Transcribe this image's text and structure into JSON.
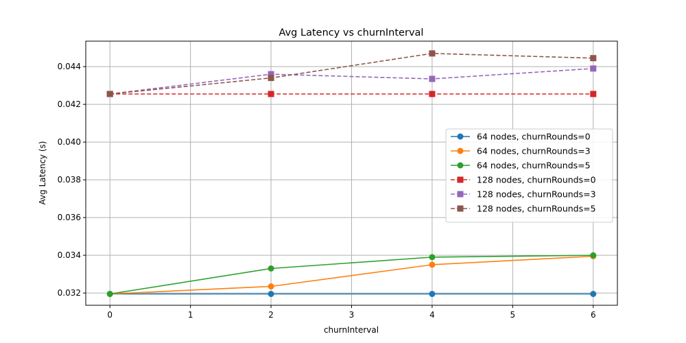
{
  "chart_data": {
    "type": "line",
    "title": "Avg Latency vs churnInterval",
    "xlabel": "churnInterval",
    "ylabel": "Avg Latency (s)",
    "xlim": [
      -0.3,
      6.3
    ],
    "ylim": [
      0.03135,
      0.04535
    ],
    "xticks": [
      "0",
      "1",
      "2",
      "3",
      "4",
      "5",
      "6"
    ],
    "yticks": [
      "0.032",
      "0.034",
      "0.036",
      "0.038",
      "0.040",
      "0.042",
      "0.044"
    ],
    "grid": true,
    "legend_position": "center-right",
    "x": [
      0,
      2,
      4,
      6
    ],
    "series": [
      {
        "name": "64 nodes, churnRounds=0",
        "color": "#1f77b4",
        "style": "solid",
        "marker": "circle",
        "values": [
          0.03195,
          0.03195,
          0.03195,
          0.03195
        ]
      },
      {
        "name": "64 nodes, churnRounds=3",
        "color": "#ff7f0e",
        "style": "solid",
        "marker": "circle",
        "values": [
          0.03195,
          0.03235,
          0.0335,
          0.03395
        ]
      },
      {
        "name": "64 nodes, churnRounds=5",
        "color": "#2ca02c",
        "style": "solid",
        "marker": "circle",
        "values": [
          0.03195,
          0.0333,
          0.0339,
          0.034
        ]
      },
      {
        "name": "128 nodes, churnRounds=0",
        "color": "#d62728",
        "style": "dashed",
        "marker": "square",
        "values": [
          0.04255,
          0.04255,
          0.04255,
          0.04255
        ]
      },
      {
        "name": "128 nodes, churnRounds=3",
        "color": "#9467bd",
        "style": "dashed",
        "marker": "square",
        "values": [
          0.04255,
          0.0436,
          0.04335,
          0.0439
        ]
      },
      {
        "name": "128 nodes, churnRounds=5",
        "color": "#8c564b",
        "style": "dashed",
        "marker": "square",
        "values": [
          0.04255,
          0.0434,
          0.0447,
          0.04445
        ]
      }
    ]
  }
}
